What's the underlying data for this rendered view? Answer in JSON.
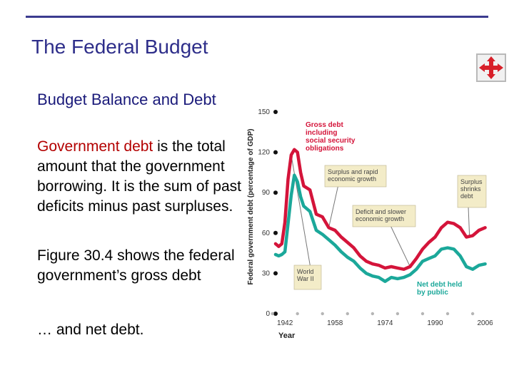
{
  "slide": {
    "title": "The Federal Budget",
    "subtitle": "Budget Balance and Debt",
    "para1_highlight": "Government debt",
    "para1_rest": " is the total amount that the government borrowing. It is the sum of past deficits minus past surpluses.",
    "para2": "Figure 30.4 shows the federal government’s gross debt",
    "para3": "… and net debt."
  },
  "nav": {
    "icon": "move-arrows-icon"
  },
  "colors": {
    "gross": "#d4143a",
    "net": "#1ba89a",
    "title": "#2e2e8a",
    "accent": "#b30000"
  },
  "chart_data": {
    "type": "line",
    "xlabel": "Year",
    "ylabel": "Federal government debt (percentage of GDP)",
    "x_ticks": [
      "1942",
      "1958",
      "1974",
      "1990",
      "2006"
    ],
    "y_ticks": [
      "0",
      "30",
      "60",
      "90",
      "120",
      "150"
    ],
    "xlim": [
      1939,
      2007
    ],
    "ylim": [
      0,
      150
    ],
    "series": [
      {
        "name": "Gross debt including social security obligations",
        "x": [
          1939,
          1940,
          1941,
          1942,
          1943,
          1944,
          1945,
          1946,
          1947,
          1948,
          1950,
          1952,
          1954,
          1956,
          1958,
          1960,
          1962,
          1964,
          1966,
          1968,
          1970,
          1972,
          1974,
          1976,
          1978,
          1980,
          1982,
          1984,
          1986,
          1988,
          1990,
          1992,
          1994,
          1996,
          1998,
          2000,
          2002,
          2004,
          2006
        ],
        "y": [
          52,
          50,
          52,
          68,
          100,
          118,
          122,
          120,
          105,
          95,
          92,
          74,
          72,
          64,
          62,
          57,
          53,
          49,
          43,
          39,
          37,
          36,
          34,
          35,
          34,
          33,
          35,
          41,
          48,
          53,
          57,
          64,
          68,
          67,
          64,
          57,
          58,
          62,
          64
        ]
      },
      {
        "name": "Net debt held by public",
        "x": [
          1939,
          1940,
          1941,
          1942,
          1943,
          1944,
          1945,
          1946,
          1947,
          1948,
          1950,
          1952,
          1954,
          1956,
          1958,
          1960,
          1962,
          1964,
          1966,
          1968,
          1970,
          1972,
          1974,
          1976,
          1978,
          1980,
          1982,
          1984,
          1986,
          1988,
          1990,
          1992,
          1994,
          1996,
          1998,
          2000,
          2002,
          2004,
          2006
        ],
        "y": [
          44,
          43,
          44,
          46,
          67,
          88,
          103,
          98,
          87,
          80,
          76,
          62,
          59,
          55,
          51,
          46,
          42,
          39,
          34,
          30,
          28,
          27,
          24,
          27,
          26,
          27,
          29,
          33,
          39,
          41,
          43,
          48,
          49,
          48,
          43,
          35,
          33,
          36,
          37
        ]
      }
    ],
    "annotations": [
      {
        "id": "gross",
        "text": [
          "Gross debt",
          "including",
          "social security",
          "obligations"
        ]
      },
      {
        "id": "surplus_rapid",
        "text": [
          "Surplus and rapid",
          "economic growth"
        ]
      },
      {
        "id": "deficit_slower",
        "text": [
          "Deficit and slower",
          "economic growth"
        ]
      },
      {
        "id": "surplus_shrinks",
        "text": [
          "Surplus",
          "shrinks",
          "debt"
        ]
      },
      {
        "id": "ww2",
        "text": [
          "World",
          "War II"
        ]
      },
      {
        "id": "net",
        "text": [
          "Net debt held",
          "by public"
        ]
      }
    ],
    "grid": false
  }
}
